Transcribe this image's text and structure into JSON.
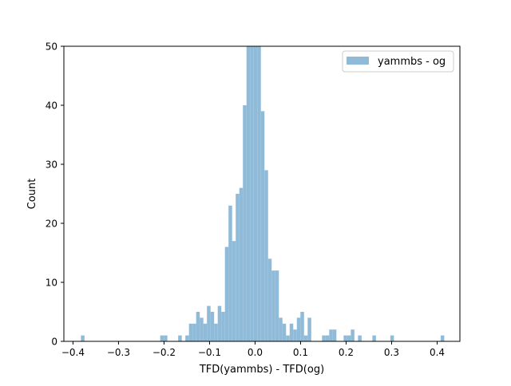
{
  "chart_data": {
    "type": "bar",
    "title": "",
    "xlabel": "TFD(yammbs) - TFD(og)",
    "ylabel": "Count",
    "xlim": [
      -0.42,
      0.45
    ],
    "ylim": [
      0,
      50
    ],
    "x_ticks": [
      -0.4,
      -0.3,
      -0.2,
      -0.1,
      0.0,
      0.1,
      0.2,
      0.3,
      0.4
    ],
    "x_tick_labels": [
      "−0.4",
      "−0.3",
      "−0.2",
      "−0.1",
      "0.0",
      "0.1",
      "0.2",
      "0.3",
      "0.4"
    ],
    "y_ticks": [
      0,
      10,
      20,
      30,
      40,
      50
    ],
    "y_tick_labels": [
      "0",
      "10",
      "20",
      "30",
      "40",
      "50"
    ],
    "grid": false,
    "legend_position": "top-right",
    "bin_width": 0.0079,
    "series": [
      {
        "name": "yammbs - og",
        "color": "#8fbbd9",
        "bins": [
          {
            "x": -0.3826,
            "count": 1
          },
          {
            "x": -0.2084,
            "count": 1
          },
          {
            "x": -0.2005,
            "count": 1
          },
          {
            "x": -0.1689,
            "count": 1
          },
          {
            "x": -0.1531,
            "count": 1
          },
          {
            "x": -0.1452,
            "count": 3
          },
          {
            "x": -0.1373,
            "count": 3
          },
          {
            "x": -0.1294,
            "count": 5
          },
          {
            "x": -0.1215,
            "count": 4
          },
          {
            "x": -0.1136,
            "count": 3
          },
          {
            "x": -0.1057,
            "count": 6
          },
          {
            "x": -0.0978,
            "count": 5
          },
          {
            "x": -0.0899,
            "count": 3
          },
          {
            "x": -0.082,
            "count": 6
          },
          {
            "x": -0.0741,
            "count": 5
          },
          {
            "x": -0.0662,
            "count": 16
          },
          {
            "x": -0.0583,
            "count": 23
          },
          {
            "x": -0.0504,
            "count": 17
          },
          {
            "x": -0.0425,
            "count": 25
          },
          {
            "x": -0.0346,
            "count": 26
          },
          {
            "x": -0.0267,
            "count": 40
          },
          {
            "x": -0.0188,
            "count": 50
          },
          {
            "x": -0.0109,
            "count": 50
          },
          {
            "x": -0.003,
            "count": 50
          },
          {
            "x": 0.0049,
            "count": 50
          },
          {
            "x": 0.0128,
            "count": 39
          },
          {
            "x": 0.0207,
            "count": 29
          },
          {
            "x": 0.0286,
            "count": 14
          },
          {
            "x": 0.0365,
            "count": 12
          },
          {
            "x": 0.0444,
            "count": 12
          },
          {
            "x": 0.0523,
            "count": 4
          },
          {
            "x": 0.0602,
            "count": 3
          },
          {
            "x": 0.0681,
            "count": 1
          },
          {
            "x": 0.076,
            "count": 3
          },
          {
            "x": 0.0839,
            "count": 2
          },
          {
            "x": 0.0918,
            "count": 4
          },
          {
            "x": 0.0997,
            "count": 5
          },
          {
            "x": 0.1076,
            "count": 1
          },
          {
            "x": 0.1155,
            "count": 4
          },
          {
            "x": 0.1471,
            "count": 1
          },
          {
            "x": 0.155,
            "count": 1
          },
          {
            "x": 0.1629,
            "count": 2
          },
          {
            "x": 0.1708,
            "count": 2
          },
          {
            "x": 0.1945,
            "count": 1
          },
          {
            "x": 0.2024,
            "count": 1
          },
          {
            "x": 0.2103,
            "count": 2
          },
          {
            "x": 0.2261,
            "count": 1
          },
          {
            "x": 0.2577,
            "count": 1
          },
          {
            "x": 0.2972,
            "count": 1
          },
          {
            "x": 0.4078,
            "count": 1
          }
        ]
      }
    ]
  }
}
